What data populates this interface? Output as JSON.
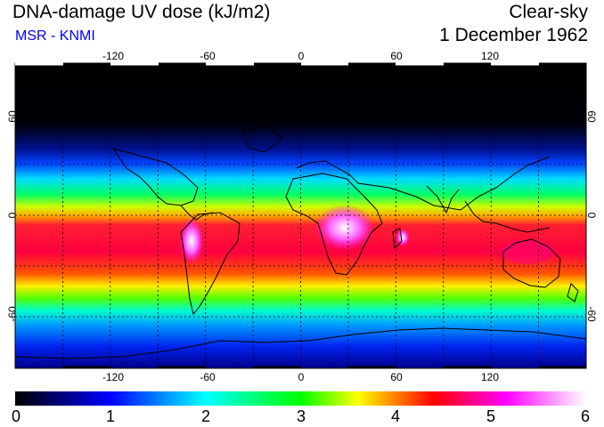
{
  "header": {
    "title": "DNA-damage UV dose (kJ/m2)",
    "source": "MSR - KNMI",
    "sky_condition": "Clear-sky",
    "date": "1 December 1962"
  },
  "map": {
    "lon_ticks": [
      "-120",
      "-60",
      "0",
      "60",
      "120"
    ],
    "lat_ticks": [
      "60",
      "0",
      "-60"
    ]
  },
  "colorbar": {
    "labels": [
      "0",
      "1",
      "2",
      "3",
      "4",
      "5",
      "6"
    ],
    "colors": [
      "#000000",
      "#0000ff",
      "#00ffff",
      "#00ff00",
      "#ffff00",
      "#ff0000",
      "#ff00ff",
      "#ffffff"
    ]
  }
}
